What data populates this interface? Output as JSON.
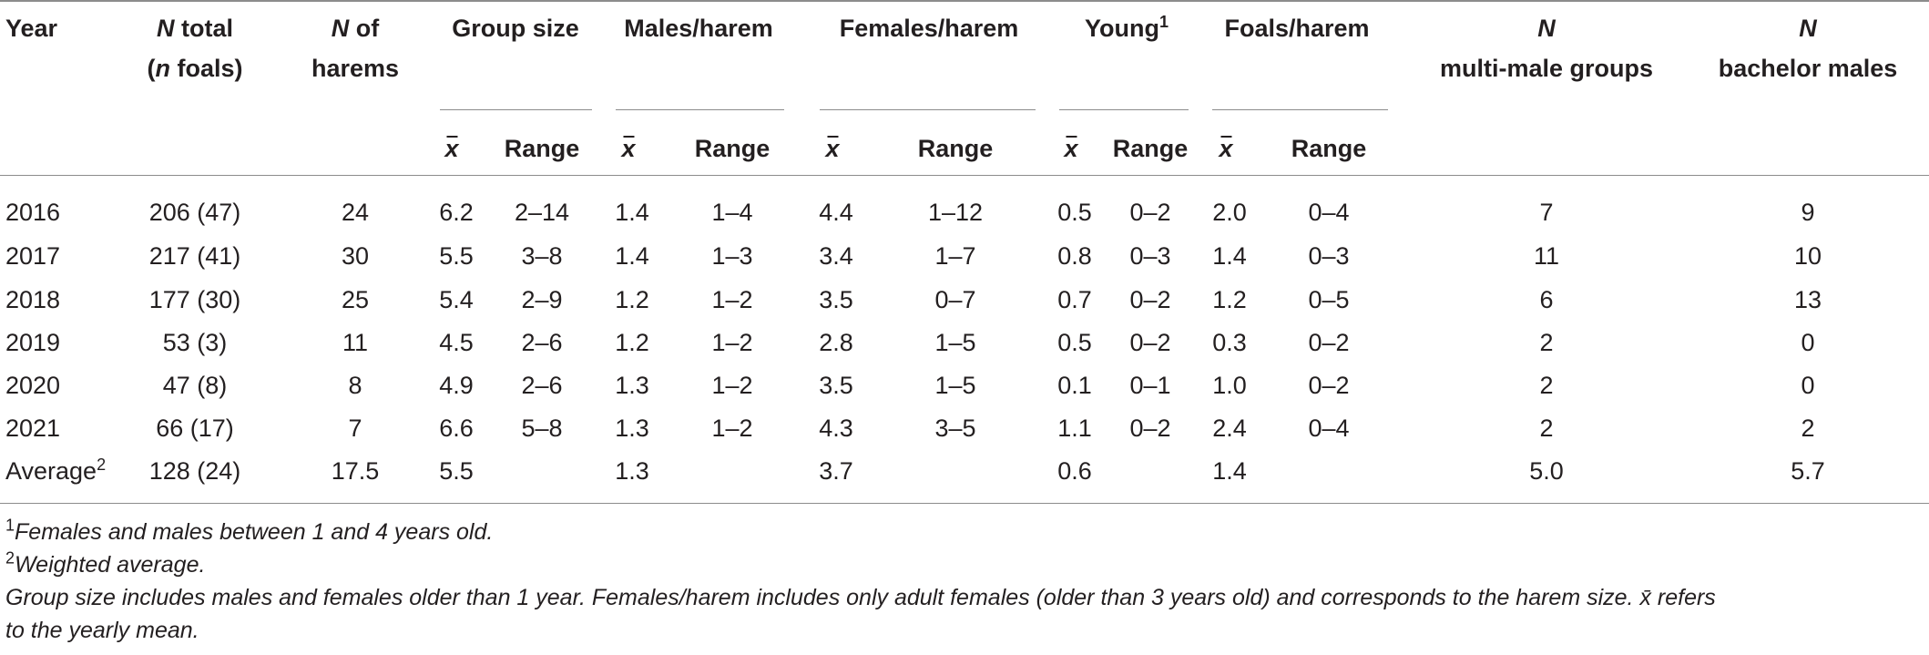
{
  "headers": {
    "year": "Year",
    "n_total_line1_italic": "N",
    "n_total_line1_rest": " total",
    "n_total_line2_open": "(",
    "n_total_line2_italic": "n",
    "n_total_line2_rest": " foals)",
    "n_harems_italic": "N",
    "n_harems_rest": " of",
    "n_harems_line2": "harems",
    "group_size": "Group size",
    "males_harem": "Males/harem",
    "females_harem": "Females/harem",
    "young": "Young",
    "young_sup": "1",
    "foals_harem": "Foals/harem",
    "multi_male_italic": "N",
    "multi_male_line2": "multi-male groups",
    "bachelor_italic": "N",
    "bachelor_line2": "bachelor males",
    "mean_symbol": "x",
    "range": "Range"
  },
  "rows": [
    {
      "year": "2016",
      "n_total": "206 (47)",
      "n_harems": "24",
      "gs_mean": "6.2",
      "gs_range": "2–14",
      "mh_mean": "1.4",
      "mh_range": "1–4",
      "fh_mean": "4.4",
      "fh_range": "1–12",
      "y_mean": "0.5",
      "y_range": "0–2",
      "foal_mean": "2.0",
      "foal_range": "0–4",
      "multi": "7",
      "bach": "9"
    },
    {
      "year": "2017",
      "n_total": "217 (41)",
      "n_harems": "30",
      "gs_mean": "5.5",
      "gs_range": "3–8",
      "mh_mean": "1.4",
      "mh_range": "1–3",
      "fh_mean": "3.4",
      "fh_range": "1–7",
      "y_mean": "0.8",
      "y_range": "0–3",
      "foal_mean": "1.4",
      "foal_range": "0–3",
      "multi": "11",
      "bach": "10"
    },
    {
      "year": "2018",
      "n_total": "177 (30)",
      "n_harems": "25",
      "gs_mean": "5.4",
      "gs_range": "2–9",
      "mh_mean": "1.2",
      "mh_range": "1–2",
      "fh_mean": "3.5",
      "fh_range": "0–7",
      "y_mean": "0.7",
      "y_range": "0–2",
      "foal_mean": "1.2",
      "foal_range": "0–5",
      "multi": "6",
      "bach": "13"
    },
    {
      "year": "2019",
      "n_total": "53 (3)",
      "n_harems": "11",
      "gs_mean": "4.5",
      "gs_range": "2–6",
      "mh_mean": "1.2",
      "mh_range": "1–2",
      "fh_mean": "2.8",
      "fh_range": "1–5",
      "y_mean": "0.5",
      "y_range": "0–2",
      "foal_mean": "0.3",
      "foal_range": "0–2",
      "multi": "2",
      "bach": "0"
    },
    {
      "year": "2020",
      "n_total": "47 (8)",
      "n_harems": "8",
      "gs_mean": "4.9",
      "gs_range": "2–6",
      "mh_mean": "1.3",
      "mh_range": "1–2",
      "fh_mean": "3.5",
      "fh_range": "1–5",
      "y_mean": "0.1",
      "y_range": "0–1",
      "foal_mean": "1.0",
      "foal_range": "0–2",
      "multi": "2",
      "bach": "0"
    },
    {
      "year": "2021",
      "n_total": "66 (17)",
      "n_harems": "7",
      "gs_mean": "6.6",
      "gs_range": "5–8",
      "mh_mean": "1.3",
      "mh_range": "1–2",
      "fh_mean": "4.3",
      "fh_range": "3–5",
      "y_mean": "1.1",
      "y_range": "0–2",
      "foal_mean": "2.4",
      "foal_range": "0–4",
      "multi": "2",
      "bach": "2"
    }
  ],
  "average": {
    "label": "Average",
    "label_sup": "2",
    "n_total": "128 (24)",
    "n_harems": "17.5",
    "gs_mean": "5.5",
    "mh_mean": "1.3",
    "fh_mean": "3.7",
    "y_mean": "0.6",
    "foal_mean": "1.4",
    "multi": "5.0",
    "bach": "5.7"
  },
  "footnotes": {
    "note1_sup": "1",
    "note1": "Females and males between 1 and 4 years old.",
    "note2_sup": "2",
    "note2": "Weighted average.",
    "note3_line1": "Group size includes males and females older than 1 year. Females/harem includes only adult females (older than 3 years old) and corresponds to the harem size. x̄ refers",
    "note3_line2": "to the yearly mean."
  }
}
